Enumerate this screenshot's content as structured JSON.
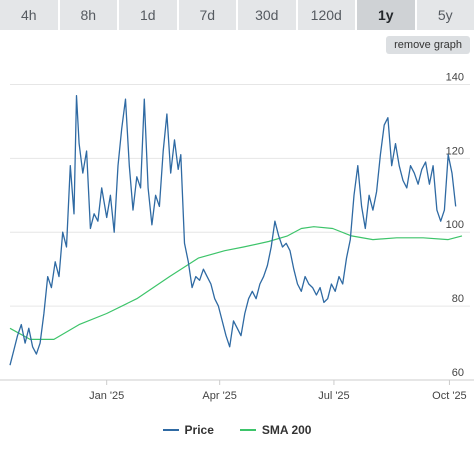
{
  "tabs": [
    {
      "label": "4h",
      "active": false
    },
    {
      "label": "8h",
      "active": false
    },
    {
      "label": "1d",
      "active": false
    },
    {
      "label": "7d",
      "active": false
    },
    {
      "label": "30d",
      "active": false
    },
    {
      "label": "120d",
      "active": false
    },
    {
      "label": "1y",
      "active": true
    },
    {
      "label": "5y",
      "active": false
    }
  ],
  "remove_graph_label": "remove graph",
  "chart_data": {
    "type": "line",
    "ylim": [
      60,
      145
    ],
    "yticks": [
      60,
      80,
      100,
      120,
      140
    ],
    "xlim": [
      "2024-10-16",
      "2025-10-11"
    ],
    "xticks": [
      {
        "label": "Jan '25",
        "date": "2025-01-01"
      },
      {
        "label": "Apr '25",
        "date": "2025-04-01"
      },
      {
        "label": "Jul '25",
        "date": "2025-07-01"
      },
      {
        "label": "Oct '25",
        "date": "2025-10-01"
      }
    ],
    "grid": "horizontal",
    "legend_position": "bottom",
    "series": [
      {
        "name": "Price",
        "color": "#2f6aa3",
        "points": [
          [
            "2024-10-16",
            64
          ],
          [
            "2024-10-19",
            68
          ],
          [
            "2024-10-22",
            72
          ],
          [
            "2024-10-25",
            75
          ],
          [
            "2024-10-28",
            70
          ],
          [
            "2024-10-31",
            74
          ],
          [
            "2024-11-03",
            69
          ],
          [
            "2024-11-06",
            67
          ],
          [
            "2024-11-09",
            70
          ],
          [
            "2024-11-12",
            78
          ],
          [
            "2024-11-15",
            88
          ],
          [
            "2024-11-18",
            85
          ],
          [
            "2024-11-21",
            92
          ],
          [
            "2024-11-24",
            88
          ],
          [
            "2024-11-27",
            100
          ],
          [
            "2024-11-30",
            96
          ],
          [
            "2024-12-03",
            118
          ],
          [
            "2024-12-06",
            105
          ],
          [
            "2024-12-08",
            137
          ],
          [
            "2024-12-10",
            124
          ],
          [
            "2024-12-13",
            116
          ],
          [
            "2024-12-16",
            122
          ],
          [
            "2024-12-19",
            101
          ],
          [
            "2024-12-22",
            105
          ],
          [
            "2024-12-25",
            103
          ],
          [
            "2024-12-28",
            112
          ],
          [
            "2025-01-01",
            104
          ],
          [
            "2025-01-04",
            110
          ],
          [
            "2025-01-07",
            100
          ],
          [
            "2025-01-10",
            118
          ],
          [
            "2025-01-13",
            128
          ],
          [
            "2025-01-16",
            136
          ],
          [
            "2025-01-19",
            118
          ],
          [
            "2025-01-22",
            106
          ],
          [
            "2025-01-25",
            115
          ],
          [
            "2025-01-28",
            112
          ],
          [
            "2025-01-31",
            136
          ],
          [
            "2025-02-03",
            112
          ],
          [
            "2025-02-06",
            102
          ],
          [
            "2025-02-09",
            110
          ],
          [
            "2025-02-12",
            107
          ],
          [
            "2025-02-15",
            122
          ],
          [
            "2025-02-18",
            132
          ],
          [
            "2025-02-21",
            116
          ],
          [
            "2025-02-24",
            125
          ],
          [
            "2025-02-27",
            117
          ],
          [
            "2025-03-01",
            121
          ],
          [
            "2025-03-04",
            97
          ],
          [
            "2025-03-07",
            92
          ],
          [
            "2025-03-10",
            85
          ],
          [
            "2025-03-13",
            88
          ],
          [
            "2025-03-16",
            87
          ],
          [
            "2025-03-19",
            90
          ],
          [
            "2025-03-22",
            88
          ],
          [
            "2025-03-25",
            86
          ],
          [
            "2025-03-28",
            82
          ],
          [
            "2025-03-31",
            80
          ],
          [
            "2025-04-03",
            76
          ],
          [
            "2025-04-06",
            72
          ],
          [
            "2025-04-09",
            69
          ],
          [
            "2025-04-12",
            76
          ],
          [
            "2025-04-15",
            74
          ],
          [
            "2025-04-18",
            72
          ],
          [
            "2025-04-21",
            78
          ],
          [
            "2025-04-24",
            82
          ],
          [
            "2025-04-27",
            84
          ],
          [
            "2025-04-30",
            82
          ],
          [
            "2025-05-03",
            86
          ],
          [
            "2025-05-06",
            88
          ],
          [
            "2025-05-09",
            91
          ],
          [
            "2025-05-12",
            96
          ],
          [
            "2025-05-15",
            103
          ],
          [
            "2025-05-18",
            99
          ],
          [
            "2025-05-21",
            96
          ],
          [
            "2025-05-24",
            97
          ],
          [
            "2025-05-27",
            95
          ],
          [
            "2025-05-30",
            90
          ],
          [
            "2025-06-02",
            86
          ],
          [
            "2025-06-05",
            84
          ],
          [
            "2025-06-08",
            88
          ],
          [
            "2025-06-11",
            86
          ],
          [
            "2025-06-14",
            85
          ],
          [
            "2025-06-17",
            83
          ],
          [
            "2025-06-20",
            85
          ],
          [
            "2025-06-23",
            81
          ],
          [
            "2025-06-26",
            82
          ],
          [
            "2025-06-29",
            86
          ],
          [
            "2025-07-02",
            84
          ],
          [
            "2025-07-05",
            88
          ],
          [
            "2025-07-08",
            86
          ],
          [
            "2025-07-11",
            93
          ],
          [
            "2025-07-14",
            98
          ],
          [
            "2025-07-17",
            110
          ],
          [
            "2025-07-20",
            118
          ],
          [
            "2025-07-23",
            107
          ],
          [
            "2025-07-26",
            101
          ],
          [
            "2025-07-29",
            110
          ],
          [
            "2025-08-01",
            106
          ],
          [
            "2025-08-04",
            111
          ],
          [
            "2025-08-07",
            121
          ],
          [
            "2025-08-10",
            129
          ],
          [
            "2025-08-13",
            131
          ],
          [
            "2025-08-16",
            118
          ],
          [
            "2025-08-19",
            124
          ],
          [
            "2025-08-22",
            118
          ],
          [
            "2025-08-25",
            114
          ],
          [
            "2025-08-28",
            112
          ],
          [
            "2025-08-31",
            118
          ],
          [
            "2025-09-03",
            116
          ],
          [
            "2025-09-06",
            113
          ],
          [
            "2025-09-09",
            117
          ],
          [
            "2025-09-12",
            119
          ],
          [
            "2025-09-15",
            113
          ],
          [
            "2025-09-18",
            118
          ],
          [
            "2025-09-21",
            106
          ],
          [
            "2025-09-24",
            103
          ],
          [
            "2025-09-27",
            106
          ],
          [
            "2025-09-30",
            121
          ],
          [
            "2025-10-03",
            116
          ],
          [
            "2025-10-06",
            107
          ]
        ]
      },
      {
        "name": "SMA 200",
        "color": "#3dc46a",
        "points": [
          [
            "2024-10-16",
            74
          ],
          [
            "2024-11-01",
            71
          ],
          [
            "2024-11-20",
            71
          ],
          [
            "2024-12-10",
            75
          ],
          [
            "2025-01-01",
            78
          ],
          [
            "2025-01-25",
            82
          ],
          [
            "2025-02-20",
            88
          ],
          [
            "2025-03-15",
            93
          ],
          [
            "2025-04-05",
            95
          ],
          [
            "2025-04-20",
            96
          ],
          [
            "2025-05-10",
            97.5
          ],
          [
            "2025-05-25",
            99
          ],
          [
            "2025-06-05",
            101
          ],
          [
            "2025-06-15",
            101.5
          ],
          [
            "2025-06-30",
            101
          ],
          [
            "2025-07-15",
            99
          ],
          [
            "2025-08-01",
            98
          ],
          [
            "2025-08-20",
            98.5
          ],
          [
            "2025-09-10",
            98.5
          ],
          [
            "2025-09-30",
            98
          ],
          [
            "2025-10-11",
            99
          ]
        ]
      }
    ]
  }
}
